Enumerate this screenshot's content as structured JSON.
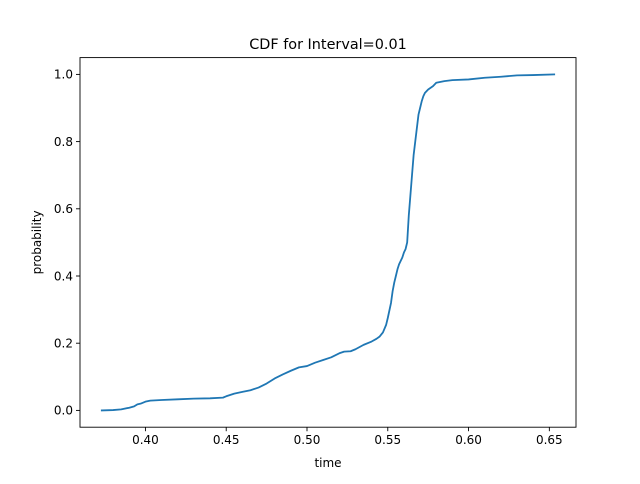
{
  "chart_data": {
    "type": "line",
    "title": "CDF for Interval=0.01",
    "xlabel": "time",
    "ylabel": "probability",
    "xlim": [
      0.3595,
      0.6665
    ],
    "ylim": [
      -0.05,
      1.05
    ],
    "xticks": [
      0.4,
      0.45,
      0.5,
      0.55,
      0.6,
      0.65
    ],
    "xtick_labels": [
      "0.40",
      "0.45",
      "0.50",
      "0.55",
      "0.60",
      "0.65"
    ],
    "yticks": [
      0.0,
      0.2,
      0.4,
      0.6,
      0.8,
      1.0
    ],
    "ytick_labels": [
      "0.0",
      "0.2",
      "0.4",
      "0.6",
      "0.8",
      "1.0"
    ],
    "grid": false,
    "line_color": "#1f77b4",
    "series": [
      {
        "x": [
          0.373,
          0.38,
          0.385,
          0.39,
          0.393,
          0.395,
          0.397,
          0.4,
          0.403,
          0.41,
          0.42,
          0.43,
          0.44,
          0.448,
          0.45,
          0.455,
          0.46,
          0.465,
          0.47,
          0.475,
          0.48,
          0.485,
          0.49,
          0.495,
          0.5,
          0.505,
          0.51,
          0.515,
          0.52,
          0.523,
          0.527,
          0.53,
          0.535,
          0.54,
          0.543,
          0.545,
          0.547,
          0.549,
          0.55,
          0.552,
          0.553,
          0.554,
          0.555,
          0.556,
          0.557,
          0.558,
          0.559,
          0.56,
          0.561,
          0.562,
          0.563,
          0.564,
          0.565,
          0.566,
          0.567,
          0.568,
          0.569,
          0.57,
          0.571,
          0.572,
          0.573,
          0.575,
          0.578,
          0.58,
          0.585,
          0.59,
          0.6,
          0.61,
          0.62,
          0.63,
          0.64,
          0.653
        ],
        "y": [
          0.0,
          0.001,
          0.003,
          0.008,
          0.012,
          0.018,
          0.02,
          0.026,
          0.029,
          0.031,
          0.033,
          0.035,
          0.036,
          0.038,
          0.042,
          0.05,
          0.055,
          0.06,
          0.068,
          0.08,
          0.095,
          0.107,
          0.118,
          0.128,
          0.132,
          0.142,
          0.15,
          0.158,
          0.17,
          0.175,
          0.176,
          0.182,
          0.195,
          0.205,
          0.213,
          0.22,
          0.232,
          0.255,
          0.275,
          0.32,
          0.355,
          0.38,
          0.4,
          0.42,
          0.435,
          0.445,
          0.455,
          0.47,
          0.48,
          0.5,
          0.58,
          0.64,
          0.7,
          0.76,
          0.8,
          0.84,
          0.88,
          0.9,
          0.92,
          0.935,
          0.945,
          0.955,
          0.965,
          0.975,
          0.98,
          0.983,
          0.985,
          0.99,
          0.993,
          0.997,
          0.998,
          1.0
        ]
      }
    ]
  }
}
